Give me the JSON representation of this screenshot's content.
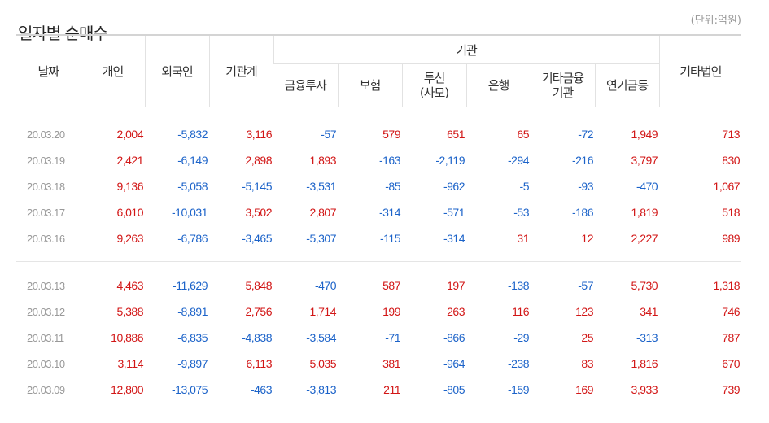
{
  "title": "일자별 순매수",
  "unit": "(단위:억원)",
  "headers": {
    "date": "날짜",
    "individual": "개인",
    "foreign": "외국인",
    "inst_total": "기관계",
    "inst_group": "기관",
    "financial_inv": "금융투자",
    "insurance": "보험",
    "trust_line1": "투신",
    "trust_line2": "(사모)",
    "bank": "은행",
    "other_fin_line1": "기타금융",
    "other_fin_line2": "기관",
    "pension": "연기금등",
    "other_corp": "기타법인"
  },
  "group1": [
    {
      "date": "20.03.20",
      "individual": "2,004",
      "foreign": "-5,832",
      "inst_total": "3,116",
      "financial_inv": "-57",
      "insurance": "579",
      "trust": "651",
      "bank": "65",
      "other_fin": "-72",
      "pension": "1,949",
      "other_corp": "713"
    },
    {
      "date": "20.03.19",
      "individual": "2,421",
      "foreign": "-6,149",
      "inst_total": "2,898",
      "financial_inv": "1,893",
      "insurance": "-163",
      "trust": "-2,119",
      "bank": "-294",
      "other_fin": "-216",
      "pension": "3,797",
      "other_corp": "830"
    },
    {
      "date": "20.03.18",
      "individual": "9,136",
      "foreign": "-5,058",
      "inst_total": "-5,145",
      "financial_inv": "-3,531",
      "insurance": "-85",
      "trust": "-962",
      "bank": "-5",
      "other_fin": "-93",
      "pension": "-470",
      "other_corp": "1,067"
    },
    {
      "date": "20.03.17",
      "individual": "6,010",
      "foreign": "-10,031",
      "inst_total": "3,502",
      "financial_inv": "2,807",
      "insurance": "-314",
      "trust": "-571",
      "bank": "-53",
      "other_fin": "-186",
      "pension": "1,819",
      "other_corp": "518"
    },
    {
      "date": "20.03.16",
      "individual": "9,263",
      "foreign": "-6,786",
      "inst_total": "-3,465",
      "financial_inv": "-5,307",
      "insurance": "-115",
      "trust": "-314",
      "bank": "31",
      "other_fin": "12",
      "pension": "2,227",
      "other_corp": "989"
    }
  ],
  "group2": [
    {
      "date": "20.03.13",
      "individual": "4,463",
      "foreign": "-11,629",
      "inst_total": "5,848",
      "financial_inv": "-470",
      "insurance": "587",
      "trust": "197",
      "bank": "-138",
      "other_fin": "-57",
      "pension": "5,730",
      "other_corp": "1,318"
    },
    {
      "date": "20.03.12",
      "individual": "5,388",
      "foreign": "-8,891",
      "inst_total": "2,756",
      "financial_inv": "1,714",
      "insurance": "199",
      "trust": "263",
      "bank": "116",
      "other_fin": "123",
      "pension": "341",
      "other_corp": "746"
    },
    {
      "date": "20.03.11",
      "individual": "10,886",
      "foreign": "-6,835",
      "inst_total": "-4,838",
      "financial_inv": "-3,584",
      "insurance": "-71",
      "trust": "-866",
      "bank": "-29",
      "other_fin": "25",
      "pension": "-313",
      "other_corp": "787"
    },
    {
      "date": "20.03.10",
      "individual": "3,114",
      "foreign": "-9,897",
      "inst_total": "6,113",
      "financial_inv": "5,035",
      "insurance": "381",
      "trust": "-964",
      "bank": "-238",
      "other_fin": "83",
      "pension": "1,816",
      "other_corp": "670"
    },
    {
      "date": "20.03.09",
      "individual": "12,800",
      "foreign": "-13,075",
      "inst_total": "-463",
      "financial_inv": "-3,813",
      "insurance": "211",
      "trust": "-805",
      "bank": "-159",
      "other_fin": "169",
      "pension": "3,933",
      "other_corp": "739"
    }
  ],
  "colors": {
    "positive": "#d21616",
    "negative": "#1c63c9",
    "date": "#999999",
    "border": "#d4d4d4"
  }
}
